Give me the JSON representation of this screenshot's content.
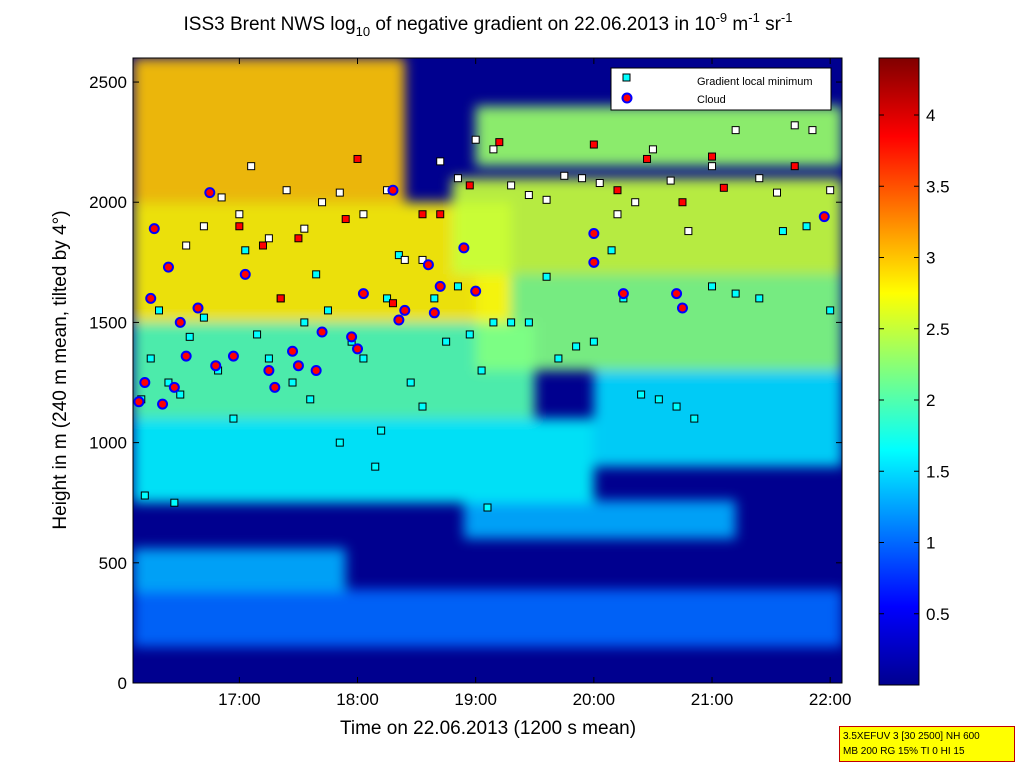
{
  "chart_data": {
    "type": "heatmap",
    "title_parts": {
      "prefix": "ISS3 Brent NWS log",
      "log_base": "10",
      "middle": " of negative gradient on 22.06.2013 in 10",
      "exp1": "-9",
      "unit_m": " m",
      "exp2": "-1",
      "unit_sr": " sr",
      "exp3": "-1"
    },
    "xlabel": "Time on 22.06.2013 (1200 s mean)",
    "ylabel": "Height in m (240 m mean, tilted by 4°)",
    "xlim": [
      16.1,
      22.1
    ],
    "ylim": [
      0,
      2600
    ],
    "x_ticks": [
      {
        "value": 17,
        "label": "17:00"
      },
      {
        "value": 18,
        "label": "18:00"
      },
      {
        "value": 19,
        "label": "19:00"
      },
      {
        "value": 20,
        "label": "20:00"
      },
      {
        "value": 21,
        "label": "21:00"
      },
      {
        "value": 22,
        "label": "22:00"
      }
    ],
    "y_ticks": [
      {
        "value": 0,
        "label": "0"
      },
      {
        "value": 500,
        "label": "500"
      },
      {
        "value": 1000,
        "label": "1000"
      },
      {
        "value": 1500,
        "label": "1500"
      },
      {
        "value": 2000,
        "label": "2000"
      },
      {
        "value": 2500,
        "label": "2500"
      }
    ],
    "colorbar": {
      "colormap": "jet",
      "range": [
        0,
        4.4
      ],
      "ticks": [
        {
          "value": 0.5,
          "label": "0.5"
        },
        {
          "value": 1,
          "label": "1"
        },
        {
          "value": 1.5,
          "label": "1.5"
        },
        {
          "value": 2,
          "label": "2"
        },
        {
          "value": 2.5,
          "label": "2.5"
        },
        {
          "value": 3,
          "label": "3"
        },
        {
          "value": 3.5,
          "label": "3.5"
        },
        {
          "value": 4,
          "label": "4"
        }
      ]
    },
    "legend": {
      "position": "top-right",
      "entries": [
        {
          "label": "Gradient local minimum",
          "marker": "square",
          "fill": "#00ffff",
          "edge": "#000000"
        },
        {
          "label": "Cloud",
          "marker": "circle",
          "fill": "#ff0000",
          "edge": "#0000ff"
        }
      ]
    },
    "grid": false,
    "layers": [
      {
        "t_start": 16.1,
        "t_end": 22.1,
        "h_bottom": 150,
        "h_top": 390,
        "value": 1.0
      },
      {
        "t_start": 16.1,
        "t_end": 17.9,
        "h_bottom": 380,
        "h_top": 560,
        "value": 1.3
      },
      {
        "t_start": 18.9,
        "t_end": 21.2,
        "h_bottom": 600,
        "h_top": 760,
        "value": 1.3
      },
      {
        "t_start": 16.1,
        "t_end": 20.0,
        "h_bottom": 750,
        "h_top": 1100,
        "value": 1.6
      },
      {
        "t_start": 20.0,
        "t_end": 22.1,
        "h_bottom": 900,
        "h_top": 1300,
        "value": 1.5
      },
      {
        "t_start": 16.1,
        "t_end": 19.5,
        "h_bottom": 1100,
        "h_top": 1500,
        "value": 2.0
      },
      {
        "t_start": 19.0,
        "t_end": 22.1,
        "h_bottom": 1300,
        "h_top": 1700,
        "value": 2.2
      },
      {
        "t_start": 16.1,
        "t_end": 19.3,
        "h_bottom": 1500,
        "h_top": 2000,
        "value": 2.8
      },
      {
        "t_start": 18.8,
        "t_end": 22.1,
        "h_bottom": 1700,
        "h_top": 2100,
        "value": 2.5
      },
      {
        "t_start": 16.1,
        "t_end": 18.4,
        "h_bottom": 2000,
        "h_top": 2600,
        "value": 3.0
      },
      {
        "t_start": 19.0,
        "t_end": 22.1,
        "h_bottom": 2150,
        "h_top": 2400,
        "value": 2.3
      }
    ],
    "series": [
      {
        "name": "Gradient local minimum",
        "points": [
          {
            "x": 16.17,
            "y": 1180
          },
          {
            "x": 16.25,
            "y": 1350
          },
          {
            "x": 16.32,
            "y": 1550
          },
          {
            "x": 16.4,
            "y": 1250
          },
          {
            "x": 16.5,
            "y": 1200
          },
          {
            "x": 16.58,
            "y": 1440
          },
          {
            "x": 16.7,
            "y": 1520
          },
          {
            "x": 16.82,
            "y": 1300
          },
          {
            "x": 16.95,
            "y": 1100
          },
          {
            "x": 17.05,
            "y": 1800
          },
          {
            "x": 17.15,
            "y": 1450
          },
          {
            "x": 17.25,
            "y": 1350
          },
          {
            "x": 17.35,
            "y": 1600
          },
          {
            "x": 17.45,
            "y": 1250
          },
          {
            "x": 17.55,
            "y": 1500
          },
          {
            "x": 17.65,
            "y": 1700
          },
          {
            "x": 17.75,
            "y": 1550
          },
          {
            "x": 17.85,
            "y": 1000
          },
          {
            "x": 17.95,
            "y": 1420
          },
          {
            "x": 18.05,
            "y": 1350
          },
          {
            "x": 18.15,
            "y": 900
          },
          {
            "x": 18.25,
            "y": 1600
          },
          {
            "x": 18.35,
            "y": 1780
          },
          {
            "x": 18.45,
            "y": 1250
          },
          {
            "x": 18.55,
            "y": 1150
          },
          {
            "x": 18.65,
            "y": 1600
          },
          {
            "x": 18.75,
            "y": 1420
          },
          {
            "x": 18.85,
            "y": 1650
          },
          {
            "x": 18.95,
            "y": 1450
          },
          {
            "x": 19.05,
            "y": 1300
          },
          {
            "x": 19.15,
            "y": 1500
          },
          {
            "x": 19.3,
            "y": 1500
          },
          {
            "x": 19.45,
            "y": 1500
          },
          {
            "x": 19.6,
            "y": 1690
          },
          {
            "x": 19.7,
            "y": 1350
          },
          {
            "x": 19.85,
            "y": 1400
          },
          {
            "x": 20.0,
            "y": 1420
          },
          {
            "x": 20.15,
            "y": 1800
          },
          {
            "x": 20.25,
            "y": 1600
          },
          {
            "x": 20.4,
            "y": 1200
          },
          {
            "x": 20.55,
            "y": 1180
          },
          {
            "x": 20.7,
            "y": 1150
          },
          {
            "x": 20.85,
            "y": 1100
          },
          {
            "x": 21.0,
            "y": 1650
          },
          {
            "x": 21.2,
            "y": 1620
          },
          {
            "x": 21.4,
            "y": 1600
          },
          {
            "x": 21.6,
            "y": 1880
          },
          {
            "x": 21.8,
            "y": 1900
          },
          {
            "x": 22.0,
            "y": 1550
          },
          {
            "x": 16.2,
            "y": 780
          },
          {
            "x": 16.45,
            "y": 750
          },
          {
            "x": 19.1,
            "y": 730
          },
          {
            "x": 18.2,
            "y": 1050
          },
          {
            "x": 17.6,
            "y": 1180
          }
        ]
      },
      {
        "name": "Gradient local minimum (upper)",
        "points": [
          {
            "x": 16.55,
            "y": 1820
          },
          {
            "x": 16.7,
            "y": 1900
          },
          {
            "x": 16.85,
            "y": 2020
          },
          {
            "x": 17.0,
            "y": 1950
          },
          {
            "x": 17.1,
            "y": 2150
          },
          {
            "x": 17.25,
            "y": 1850
          },
          {
            "x": 17.4,
            "y": 2050
          },
          {
            "x": 17.55,
            "y": 1890
          },
          {
            "x": 17.7,
            "y": 2000
          },
          {
            "x": 17.85,
            "y": 2040
          },
          {
            "x": 18.05,
            "y": 1950
          },
          {
            "x": 18.25,
            "y": 2050
          },
          {
            "x": 18.4,
            "y": 1760
          },
          {
            "x": 18.55,
            "y": 1760
          },
          {
            "x": 18.7,
            "y": 2170
          },
          {
            "x": 18.85,
            "y": 2100
          },
          {
            "x": 19.0,
            "y": 2260
          },
          {
            "x": 19.15,
            "y": 2220
          },
          {
            "x": 19.3,
            "y": 2070
          },
          {
            "x": 19.45,
            "y": 2030
          },
          {
            "x": 19.6,
            "y": 2010
          },
          {
            "x": 19.75,
            "y": 2110
          },
          {
            "x": 19.9,
            "y": 2100
          },
          {
            "x": 20.05,
            "y": 2080
          },
          {
            "x": 20.2,
            "y": 1950
          },
          {
            "x": 20.35,
            "y": 2000
          },
          {
            "x": 20.5,
            "y": 2220
          },
          {
            "x": 20.65,
            "y": 2090
          },
          {
            "x": 20.8,
            "y": 1880
          },
          {
            "x": 21.0,
            "y": 2150
          },
          {
            "x": 21.2,
            "y": 2300
          },
          {
            "x": 21.4,
            "y": 2100
          },
          {
            "x": 21.55,
            "y": 2040
          },
          {
            "x": 21.7,
            "y": 2320
          },
          {
            "x": 21.85,
            "y": 2300
          },
          {
            "x": 22.0,
            "y": 2050
          }
        ]
      },
      {
        "name": "Cloud",
        "points": [
          {
            "x": 16.15,
            "y": 1170
          },
          {
            "x": 16.2,
            "y": 1250
          },
          {
            "x": 16.25,
            "y": 1600
          },
          {
            "x": 16.28,
            "y": 1890
          },
          {
            "x": 16.35,
            "y": 1160
          },
          {
            "x": 16.4,
            "y": 1730
          },
          {
            "x": 16.45,
            "y": 1230
          },
          {
            "x": 16.5,
            "y": 1500
          },
          {
            "x": 16.55,
            "y": 1360
          },
          {
            "x": 16.65,
            "y": 1560
          },
          {
            "x": 16.75,
            "y": 2040
          },
          {
            "x": 16.8,
            "y": 1320
          },
          {
            "x": 16.95,
            "y": 1360
          },
          {
            "x": 17.05,
            "y": 1700
          },
          {
            "x": 17.25,
            "y": 1300
          },
          {
            "x": 17.3,
            "y": 1230
          },
          {
            "x": 17.45,
            "y": 1380
          },
          {
            "x": 17.5,
            "y": 1320
          },
          {
            "x": 17.65,
            "y": 1300
          },
          {
            "x": 17.7,
            "y": 1460
          },
          {
            "x": 17.95,
            "y": 1440
          },
          {
            "x": 18.0,
            "y": 1390
          },
          {
            "x": 18.05,
            "y": 1620
          },
          {
            "x": 18.3,
            "y": 2050
          },
          {
            "x": 18.35,
            "y": 1510
          },
          {
            "x": 18.4,
            "y": 1550
          },
          {
            "x": 18.6,
            "y": 1740
          },
          {
            "x": 18.65,
            "y": 1540
          },
          {
            "x": 18.7,
            "y": 1650
          },
          {
            "x": 18.9,
            "y": 1810
          },
          {
            "x": 19.0,
            "y": 1630
          },
          {
            "x": 20.0,
            "y": 1750
          },
          {
            "x": 20.0,
            "y": 1870
          },
          {
            "x": 20.25,
            "y": 1620
          },
          {
            "x": 20.7,
            "y": 1620
          },
          {
            "x": 20.75,
            "y": 1560
          },
          {
            "x": 21.95,
            "y": 1940
          }
        ]
      },
      {
        "name": "Red squares",
        "points": [
          {
            "x": 17.0,
            "y": 1900
          },
          {
            "x": 17.2,
            "y": 1820
          },
          {
            "x": 17.5,
            "y": 1850
          },
          {
            "x": 17.9,
            "y": 1930
          },
          {
            "x": 18.0,
            "y": 2180
          },
          {
            "x": 18.55,
            "y": 1950
          },
          {
            "x": 18.7,
            "y": 1950
          },
          {
            "x": 18.95,
            "y": 2070
          },
          {
            "x": 19.2,
            "y": 2250
          },
          {
            "x": 20.0,
            "y": 2240
          },
          {
            "x": 20.2,
            "y": 2050
          },
          {
            "x": 20.45,
            "y": 2180
          },
          {
            "x": 20.75,
            "y": 2000
          },
          {
            "x": 21.0,
            "y": 2190
          },
          {
            "x": 21.1,
            "y": 2060
          },
          {
            "x": 21.7,
            "y": 2150
          },
          {
            "x": 18.3,
            "y": 1580
          },
          {
            "x": 17.35,
            "y": 1600
          }
        ]
      }
    ]
  },
  "info_box": {
    "line1": "3.5XEFUV 3 [30 2500] NH 600",
    "line2": "MB 200 RG 15% TI 0 HI 15"
  },
  "colors": {
    "background_layer": "#00008f",
    "marker_min_fill": "#00ffff",
    "marker_cloud_fill": "#ff0000",
    "marker_cloud_edge": "#0000ff",
    "marker_upper_fill": "#ffffff",
    "marker_red_fill": "#ff0000"
  }
}
